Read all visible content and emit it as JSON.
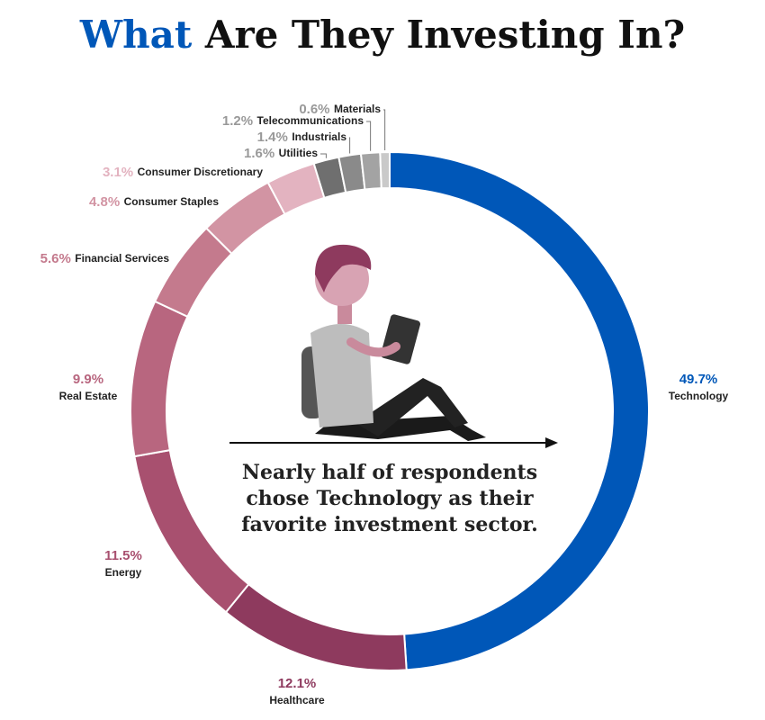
{
  "chart_data": {
    "type": "donut",
    "title": [
      "What",
      "Are They Investing In?"
    ],
    "title_colors": [
      "#0057b8",
      "#111111"
    ],
    "annotation": [
      "Nearly half of respondents",
      "chose Technology as their",
      "favorite investment sector."
    ],
    "categories": [
      "Technology",
      "Healthcare",
      "Energy",
      "Real Estate",
      "Financial Services",
      "Consumer Staples",
      "Consumer Discretionary",
      "Utilities",
      "Industrials",
      "Telecommunications",
      "Materials"
    ],
    "values": [
      49.7,
      12.1,
      11.5,
      9.9,
      5.6,
      4.8,
      3.1,
      1.6,
      1.4,
      1.2,
      0.6
    ],
    "value_labels": [
      "49.7%",
      "12.1%",
      "11.5%",
      "9.9%",
      "5.6%",
      "4.8%",
      "3.1%",
      "1.6%",
      "1.4%",
      "1.2%",
      "0.6%"
    ],
    "colors": [
      "#0057b8",
      "#8e3a5e",
      "#a8506f",
      "#b8667f",
      "#c47a8d",
      "#d294a3",
      "#e3b3c0",
      "#6f6f6f",
      "#8a8a8a",
      "#a3a3a3",
      "#c9c9c9"
    ]
  }
}
